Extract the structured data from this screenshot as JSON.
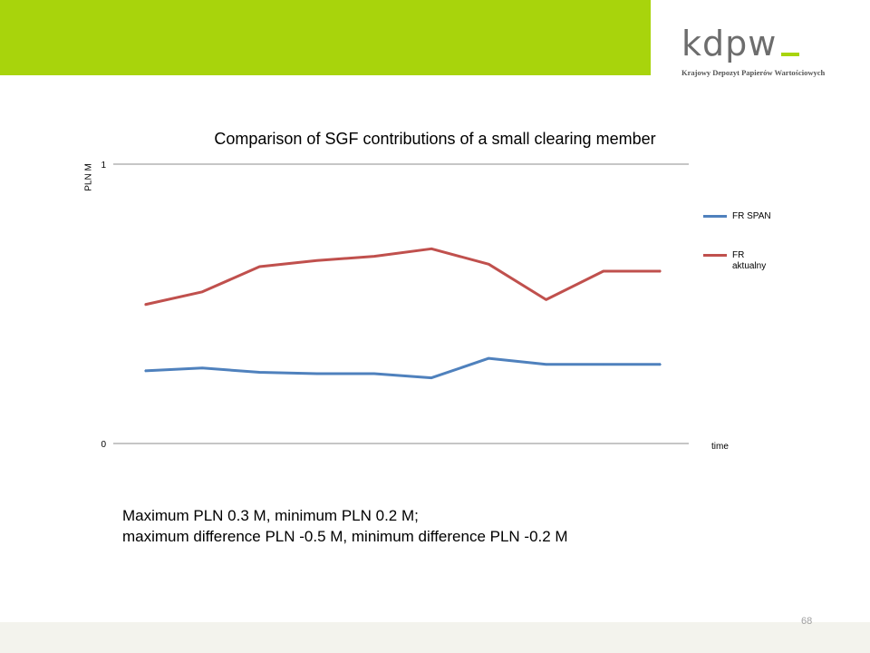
{
  "header": {
    "accent_color": "#a8d40c"
  },
  "logo": {
    "word": "kdpw",
    "tagline": "Krajowy Depozyt Papierów Wartościowych"
  },
  "chart_data": {
    "type": "line",
    "title": "Comparison of SGF contributions of a small clearing member",
    "xlabel": "time",
    "ylabel": "PLN M",
    "ylim": [
      0,
      1
    ],
    "yticks": [
      "0",
      "1"
    ],
    "x": [
      1,
      2,
      3,
      4,
      5,
      6,
      7,
      8,
      9,
      10
    ],
    "series": [
      {
        "name": "FR SPAN",
        "color": "#4f81bd",
        "values": [
          0.26,
          0.27,
          0.255,
          0.25,
          0.25,
          0.235,
          0.305,
          0.283,
          0.283,
          0.283
        ]
      },
      {
        "name": "FR aktualny",
        "color": "#c0504d",
        "values": [
          0.497,
          0.543,
          0.633,
          0.655,
          0.67,
          0.697,
          0.642,
          0.515,
          0.617,
          0.617
        ]
      }
    ],
    "grid": false,
    "legend": "right"
  },
  "summary": {
    "line1": "Maximum PLN 0.3 M, minimum PLN 0.2 M;",
    "line2": "maximum difference PLN -0.5 M, minimum difference PLN -0.2 M"
  },
  "footer": {
    "page_number": "68"
  }
}
